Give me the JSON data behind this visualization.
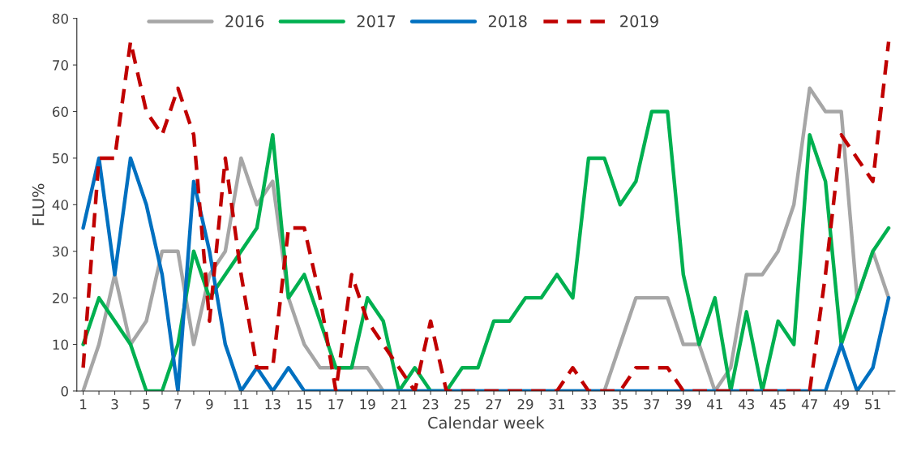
{
  "chart_data": {
    "type": "line",
    "xlabel": "Calendar week",
    "ylabel": "FLU%",
    "x": [
      1,
      2,
      3,
      4,
      5,
      6,
      7,
      8,
      9,
      10,
      11,
      12,
      13,
      14,
      15,
      16,
      17,
      18,
      19,
      20,
      21,
      22,
      23,
      24,
      25,
      26,
      27,
      28,
      29,
      30,
      31,
      32,
      33,
      34,
      35,
      36,
      37,
      38,
      39,
      40,
      41,
      42,
      43,
      44,
      45,
      46,
      47,
      48,
      49,
      50,
      51,
      52
    ],
    "series": [
      {
        "name": "2016",
        "color": "#a6a6a6",
        "line_style": "solid",
        "values": [
          0,
          10,
          25,
          10,
          15,
          30,
          30,
          10,
          25,
          30,
          50,
          40,
          45,
          20,
          10,
          5,
          5,
          5,
          5,
          0,
          0,
          0,
          0,
          0,
          0,
          0,
          0,
          0,
          0,
          0,
          0,
          0,
          0,
          0,
          10,
          20,
          20,
          20,
          10,
          10,
          0,
          5,
          25,
          25,
          30,
          40,
          65,
          60,
          60,
          20,
          30,
          20
        ]
      },
      {
        "name": "2017",
        "color": "#00b050",
        "line_style": "solid",
        "values": [
          10,
          20,
          15,
          10,
          0,
          0,
          10,
          30,
          20,
          25,
          30,
          35,
          55,
          20,
          25,
          15,
          5,
          5,
          20,
          15,
          0,
          5,
          0,
          0,
          5,
          5,
          15,
          15,
          20,
          20,
          25,
          20,
          50,
          50,
          40,
          45,
          60,
          60,
          25,
          10,
          20,
          0,
          17,
          0,
          15,
          10,
          55,
          45,
          10,
          20,
          30,
          35
        ]
      },
      {
        "name": "2018",
        "color": "#0070c0",
        "line_style": "solid",
        "values": [
          35,
          50,
          25,
          50,
          40,
          25,
          0,
          45,
          30,
          10,
          0,
          5,
          0,
          5,
          0,
          0,
          0,
          0,
          0,
          0,
          0,
          0,
          0,
          0,
          0,
          0,
          0,
          0,
          0,
          0,
          0,
          0,
          0,
          0,
          0,
          0,
          0,
          0,
          0,
          0,
          0,
          0,
          0,
          0,
          0,
          0,
          0,
          0,
          10,
          0,
          5,
          20
        ]
      },
      {
        "name": "2019",
        "color": "#c00000",
        "line_style": "dashed",
        "values": [
          5,
          50,
          50,
          75,
          60,
          55,
          65,
          55,
          15,
          50,
          25,
          5,
          5,
          35,
          35,
          20,
          0,
          25,
          15,
          10,
          5,
          0,
          15,
          0,
          0,
          0,
          0,
          0,
          0,
          0,
          0,
          5,
          0,
          0,
          0,
          5,
          5,
          5,
          0,
          0,
          0,
          0,
          0,
          0,
          0,
          0,
          0,
          25,
          55,
          50,
          45,
          75
        ]
      }
    ],
    "xlim": [
      0.6,
      52.4
    ],
    "xticks": [
      1,
      {
        "value": 2,
        "label": null
      },
      3,
      {
        "value": 4,
        "label": null
      },
      5,
      {
        "value": 6,
        "label": null
      },
      7,
      {
        "value": 8,
        "label": null
      },
      9,
      {
        "value": 10,
        "label": null
      },
      11,
      {
        "value": 12,
        "label": null
      },
      13,
      {
        "value": 14,
        "label": null
      },
      15,
      {
        "value": 16,
        "label": null
      },
      17,
      {
        "value": 18,
        "label": null
      },
      19,
      {
        "value": 20,
        "label": null
      },
      21,
      {
        "value": 22,
        "label": null
      },
      23,
      {
        "value": 24,
        "label": null
      },
      25,
      {
        "value": 26,
        "label": null
      },
      27,
      {
        "value": 28,
        "label": null
      },
      29,
      {
        "value": 30,
        "label": null
      },
      31,
      {
        "value": 32,
        "label": null
      },
      33,
      {
        "value": 34,
        "label": null
      },
      35,
      {
        "value": 36,
        "label": null
      },
      37,
      {
        "value": 38,
        "label": null
      },
      39,
      {
        "value": 40,
        "label": null
      },
      41,
      {
        "value": 42,
        "label": null
      },
      43,
      {
        "value": 44,
        "label": null
      },
      45,
      {
        "value": 46,
        "label": null
      },
      47,
      {
        "value": 48,
        "label": null
      },
      49,
      {
        "value": 50,
        "label": null
      },
      51,
      {
        "value": 52,
        "label": null
      }
    ],
    "ylim": [
      0,
      80
    ],
    "yticks": [
      0,
      10,
      20,
      30,
      40,
      50,
      60,
      70,
      80
    ],
    "grid": false,
    "legend": "top",
    "marker": "none"
  }
}
